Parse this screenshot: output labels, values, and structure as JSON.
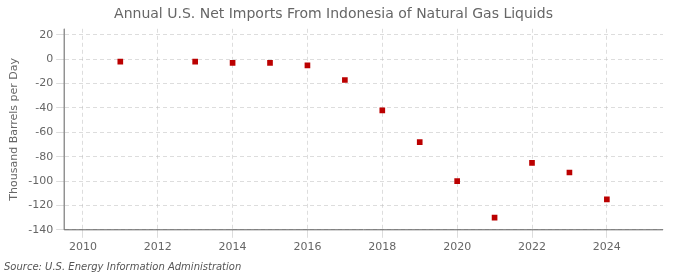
{
  "chart_data": {
    "type": "scatter",
    "title": "Annual U.S. Net Imports From Indonesia of Natural Gas Liquids",
    "ylabel": "Thousand Barrels per Day",
    "source": "Source: U.S. Energy Information Administration",
    "x": [
      2011,
      2013,
      2014,
      2015,
      2016,
      2017,
      2018,
      2019,
      2020,
      2021,
      2022,
      2023,
      2024
    ],
    "values": [
      -2,
      -2,
      -3,
      -3,
      -5,
      -17,
      -42,
      -68,
      -100,
      -130,
      -85,
      -93,
      -115
    ],
    "xlim": [
      2009.5,
      2025.5
    ],
    "ylim": [
      -140,
      25
    ],
    "xticks": [
      2010,
      2012,
      2014,
      2016,
      2018,
      2020,
      2022,
      2024
    ],
    "yticks": [
      20,
      0,
      -20,
      -40,
      -60,
      -80,
      -100,
      -120,
      -140
    ],
    "color": "#bb0000",
    "marker": "square",
    "grid": true
  }
}
